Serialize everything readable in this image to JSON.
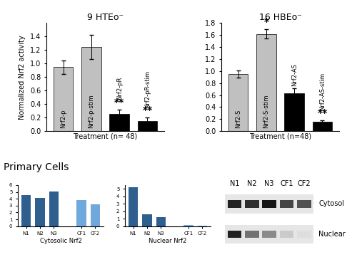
{
  "panel_label": "Primary Cells",
  "chart_data": [
    {
      "type": "bar",
      "title": "9 HTEo⁻",
      "y_label": "Normalized Nrf2 activity",
      "x_label": "Treatment (n= 48)",
      "categories": [
        "Nrf2-p",
        "Nrf2-p-stim",
        "Nrf2-pR",
        "Nrf2-pR-stim"
      ],
      "values": [
        0.95,
        1.25,
        0.25,
        0.15
      ],
      "errors": [
        0.1,
        0.18,
        0.07,
        0.05
      ],
      "colors": [
        "#c0c0c0",
        "#c0c0c0",
        "#000000",
        "#000000"
      ],
      "ylim": [
        0,
        1.6
      ],
      "yticks": [
        {
          "value": 0,
          "label": "0.0"
        },
        {
          "value": 0.2,
          "label": "0.2"
        },
        {
          "value": 0.4,
          "label": "0.4"
        },
        {
          "value": 0.6,
          "label": "0.6"
        },
        {
          "value": 0.8,
          "label": "0.8"
        },
        {
          "value": 1.0,
          "label": "1.0"
        },
        {
          "value": 1.2,
          "label": "1.2"
        },
        {
          "value": 1.4,
          "label": "1.4"
        }
      ],
      "annotations": [
        {
          "category": "Nrf2-pR",
          "text": "**"
        },
        {
          "category": "Nrf2-pR-stim",
          "text": "**"
        }
      ],
      "tick_labels": "y"
    },
    {
      "type": "bar",
      "title": "16 HBEo⁻",
      "x_label": "Treatment (n=48)",
      "categories": [
        "Nrf2-S",
        "Nrf2-S-stim",
        "Nrf2-AS",
        "Nrf2-AS-stim"
      ],
      "values": [
        0.95,
        1.62,
        0.63,
        0.15
      ],
      "errors": [
        0.06,
        0.08,
        0.08,
        0.03
      ],
      "colors": [
        "#c0c0c0",
        "#c0c0c0",
        "#000000",
        "#000000"
      ],
      "ylim": [
        0,
        1.8
      ],
      "yticks": [
        {
          "value": 0,
          "label": "0.0"
        },
        {
          "value": 0.2,
          "label": "0.2"
        },
        {
          "value": 0.4,
          "label": "0.4"
        },
        {
          "value": 0.6,
          "label": "0.6"
        },
        {
          "value": 0.8,
          "label": "0.8"
        },
        {
          "value": 1.0,
          "label": "1.0"
        },
        {
          "value": 1.2,
          "label": "1.2"
        },
        {
          "value": 1.4,
          "label": "1.4"
        },
        {
          "value": 1.6,
          "label": "1.6"
        },
        {
          "value": 1.8,
          "label": "1.8"
        }
      ],
      "annotations": [
        {
          "category": "Nrf2-S-stim",
          "text": "*"
        },
        {
          "category": "Nrf2-AS-stim",
          "text": "**"
        }
      ],
      "tick_labels": "y"
    },
    {
      "type": "bar",
      "x_label": "Cytosolic Nrf2",
      "categories": [
        "N1",
        "N2",
        "N3",
        null,
        "CF1",
        "CF2"
      ],
      "values": [
        4.5,
        4.1,
        5.1,
        null,
        3.8,
        3.2
      ],
      "colors": [
        "#2e5f8f",
        "#2e5f8f",
        "#2e5f8f",
        null,
        "#6fa8dc",
        "#6fa8dc"
      ],
      "ylim": [
        0,
        6
      ],
      "yticks": [
        0,
        1,
        2,
        3,
        4,
        5,
        6
      ]
    },
    {
      "type": "bar",
      "x_label": "Nuclear Nrf2",
      "categories": [
        "N1",
        "N2",
        "N3",
        null,
        "CF1",
        "CF2"
      ],
      "values": [
        5.2,
        1.6,
        1.25,
        null,
        0.2,
        0.1
      ],
      "colors": [
        "#2e5f8f",
        "#2e5f8f",
        "#2e5f8f",
        null,
        "#6fa8dc",
        "#6fa8dc"
      ],
      "ylim": [
        0,
        5.5
      ],
      "yticks": [
        0,
        1,
        2,
        3,
        4,
        5
      ]
    }
  ],
  "blot": {
    "lanes": [
      "N1",
      "N2",
      "N3",
      "CF1",
      "CF2"
    ],
    "rows": [
      "Cytosol",
      "Nuclear"
    ]
  }
}
